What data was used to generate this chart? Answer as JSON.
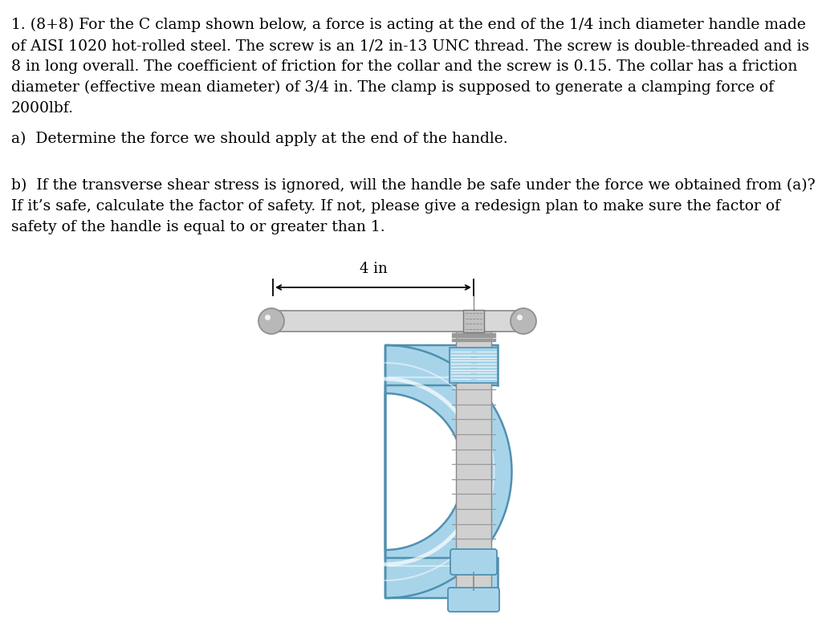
{
  "background_color": "#ffffff",
  "text_color": "#000000",
  "clamp_body_color": "#a8d4ea",
  "clamp_outline_color": "#5090b0",
  "clamp_inner_line_color": "#78b8d8",
  "screw_color_dark": "#888888",
  "screw_color_light": "#d0d0d0",
  "screw_color_blue": "#a8d4ea",
  "handle_color_light": "#d8d8d8",
  "handle_color_dark": "#909090",
  "handle_ball_color": "#b8b8b8",
  "collar_color": "#a8d4ea",
  "collar_outline": "#5090b0",
  "dimension_label": "4 in",
  "line1": "1. (8+8) For the C clamp shown below, a force is acting at the end of the 1/4 inch diameter handle made",
  "line2": "of AISI 1020 hot-rolled steel. The screw is an 1/2 in-13 UNC thread. The screw is double-threaded and is",
  "line3": "8 in long overall. The coefficient of friction for the collar and the screw is 0.15. The collar has a friction",
  "line4": "diameter (effective mean diameter) of 3/4 in. The clamp is supposed to generate a clamping force of",
  "line5": "2000lbf.",
  "line_a": "a)  Determine the force we should apply at the end of the handle.",
  "line_b1": "b)  If the transverse shear stress is ignored, will the handle be safe under the force we obtained from (a)?",
  "line_b2": "If it’s safe, calculate the factor of safety. If not, please give a redesign plan to make sure the factor of",
  "line_b3": "safety of the handle is equal to or greater than 1."
}
